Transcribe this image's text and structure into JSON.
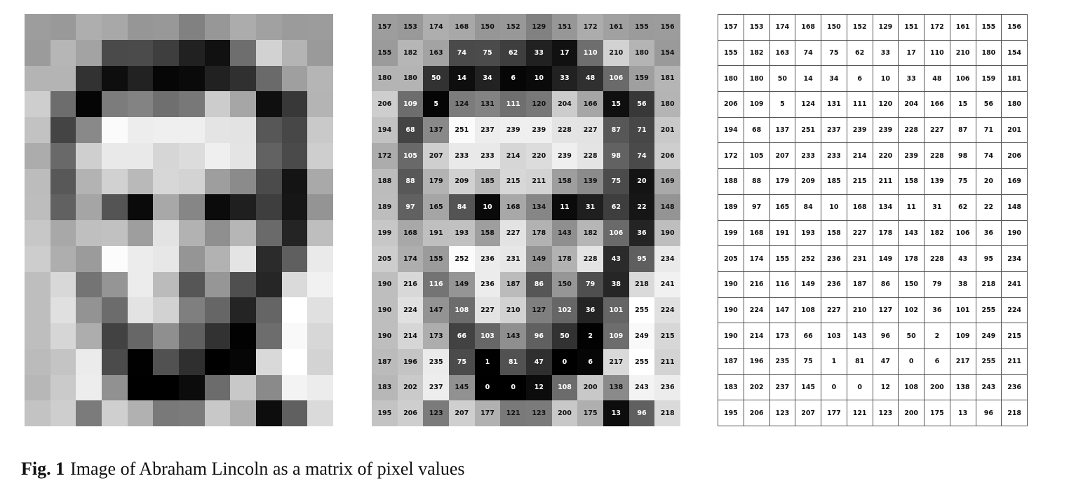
{
  "caption": {
    "label": "Fig. 1",
    "text": "Image of Abraham Lincoln as a matrix of pixel values"
  },
  "pixels": [
    [
      157,
      153,
      174,
      168,
      150,
      152,
      129,
      151,
      172,
      161,
      155,
      156
    ],
    [
      155,
      182,
      163,
      74,
      75,
      62,
      33,
      17,
      110,
      210,
      180,
      154
    ],
    [
      180,
      180,
      50,
      14,
      34,
      6,
      10,
      33,
      48,
      106,
      159,
      181
    ],
    [
      206,
      109,
      5,
      124,
      131,
      111,
      120,
      204,
      166,
      15,
      56,
      180
    ],
    [
      194,
      68,
      137,
      251,
      237,
      239,
      239,
      228,
      227,
      87,
      71,
      201
    ],
    [
      172,
      105,
      207,
      233,
      233,
      214,
      220,
      239,
      228,
      98,
      74,
      206
    ],
    [
      188,
      88,
      179,
      209,
      185,
      215,
      211,
      158,
      139,
      75,
      20,
      169
    ],
    [
      189,
      97,
      165,
      84,
      10,
      168,
      134,
      11,
      31,
      62,
      22,
      148
    ],
    [
      199,
      168,
      191,
      193,
      158,
      227,
      178,
      143,
      182,
      106,
      36,
      190
    ],
    [
      205,
      174,
      155,
      252,
      236,
      231,
      149,
      178,
      228,
      43,
      95,
      234
    ],
    [
      190,
      216,
      116,
      149,
      236,
      187,
      86,
      150,
      79,
      38,
      218,
      241
    ],
    [
      190,
      224,
      147,
      108,
      227,
      210,
      127,
      102,
      36,
      101,
      255,
      224
    ],
    [
      190,
      214,
      173,
      66,
      103,
      143,
      96,
      50,
      2,
      109,
      249,
      215
    ],
    [
      187,
      196,
      235,
      75,
      1,
      81,
      47,
      0,
      6,
      217,
      255,
      211
    ],
    [
      183,
      202,
      237,
      145,
      0,
      0,
      12,
      108,
      200,
      138,
      243,
      236
    ],
    [
      195,
      206,
      123,
      207,
      177,
      121,
      123,
      200,
      175,
      13,
      96,
      218
    ]
  ]
}
